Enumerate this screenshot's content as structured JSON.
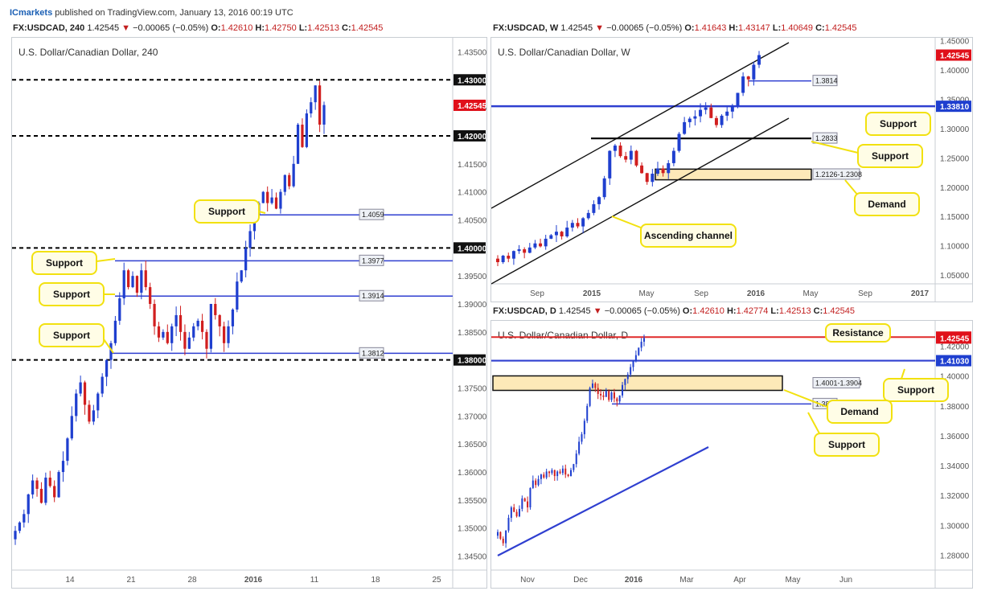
{
  "header": {
    "brand": "ICmarkets",
    "published": "published on TradingView.com, January 13, 2016 00:19 UTC"
  },
  "colors": {
    "bull": "#1f3fcf",
    "bear": "#d11f1f",
    "level": "#2f3fd0",
    "resistance": "#e02a2a",
    "zone_fill": "#fde9b8",
    "callout_border": "#f2e10f",
    "callout_fill": "#fffde6",
    "price_tag_red": "#e0101a",
    "price_tag_blue": "#1f3fcf"
  },
  "chart_data": [
    {
      "id": "h4",
      "type": "candlestick",
      "symbol_line": {
        "symbol": "FX:USDCAD, 240",
        "last": "1.42545",
        "change": "−0.00065 (−0.05%)",
        "O": "1.42610",
        "H": "1.42750",
        "L": "1.42513",
        "C": "1.42545"
      },
      "title": "U.S. Dollar/Canadian Dollar, 240",
      "x_ticks": [
        "14",
        "21",
        "28",
        "2016",
        "11",
        "18",
        "25"
      ],
      "y_ticks": [
        "1.43500",
        "1.43000",
        "1.42500",
        "1.42000",
        "1.41500",
        "1.41000",
        "1.40500",
        "1.40000",
        "1.39500",
        "1.39000",
        "1.38500",
        "1.38000",
        "1.37500",
        "1.37000",
        "1.36500",
        "1.36000",
        "1.35500",
        "1.35000",
        "1.34500"
      ],
      "ylim": [
        1.3425,
        1.4375
      ],
      "price_tags": [
        {
          "value": 1.43,
          "label": "1.43000"
        },
        {
          "value": 1.42545,
          "label": "1.42545"
        },
        {
          "value": 1.42,
          "label": "1.42000"
        },
        {
          "value": 1.4,
          "label": "1.40000"
        },
        {
          "value": 1.38,
          "label": "1.38000"
        }
      ],
      "round_levels": [
        1.43,
        1.42,
        1.4,
        1.38
      ],
      "levels": [
        {
          "value": 1.4059,
          "label": "1.4059"
        },
        {
          "value": 1.3977,
          "label": "1.3977"
        },
        {
          "value": 1.3914,
          "label": "1.3914"
        },
        {
          "value": 1.3812,
          "label": "1.3812"
        }
      ],
      "callouts": [
        "Support",
        "Support",
        "Support",
        "Support"
      ],
      "closes": [
        1.3495,
        1.351,
        1.3525,
        1.356,
        1.3585,
        1.357,
        1.3545,
        1.359,
        1.3575,
        1.3555,
        1.36,
        1.362,
        1.366,
        1.37,
        1.374,
        1.376,
        1.372,
        1.369,
        1.371,
        1.374,
        1.377,
        1.38,
        1.383,
        1.387,
        1.391,
        1.396,
        1.393,
        1.395,
        1.392,
        1.396,
        1.393,
        1.39,
        1.386,
        1.384,
        1.385,
        1.383,
        1.386,
        1.388,
        1.385,
        1.382,
        1.384,
        1.386,
        1.387,
        1.385,
        1.382,
        1.39,
        1.388,
        1.386,
        1.383,
        1.386,
        1.389,
        1.394,
        1.396,
        1.4,
        1.403,
        1.406,
        1.408,
        1.41,
        1.408,
        1.409,
        1.407,
        1.41,
        1.413,
        1.411,
        1.415,
        1.422,
        1.418,
        1.424,
        1.426,
        1.429,
        1.422,
        1.4255
      ]
    },
    {
      "id": "weekly",
      "type": "candlestick",
      "symbol_line": {
        "symbol": "FX:USDCAD, W",
        "last": "1.42545",
        "change": "−0.00065 (−0.05%)",
        "O": "1.41643",
        "H": "1.43147",
        "L": "1.40649",
        "C": "1.42545"
      },
      "title": "U.S. Dollar/Canadian Dollar, W",
      "x_ticks": [
        "Sep",
        "2015",
        "May",
        "Sep",
        "2016",
        "May",
        "Sep",
        "2017"
      ],
      "y_ticks": [
        "1.45000",
        "1.40000",
        "1.35000",
        "1.30000",
        "1.25000",
        "1.20000",
        "1.15000",
        "1.10000",
        "1.05000"
      ],
      "ylim": [
        1.035,
        1.455
      ],
      "price_tags": [
        {
          "value": 1.42545,
          "label": "1.42545"
        },
        {
          "value": 1.3381,
          "label": "1.33810"
        }
      ],
      "levels": [
        {
          "value": 1.3814,
          "label": "1.3814"
        },
        {
          "value": 1.3381,
          "label": ""
        },
        {
          "value": 1.2833,
          "label": "1.2833"
        }
      ],
      "zones": [
        {
          "from": 1.2126,
          "to": 1.2308,
          "label": "1.2126-1.2308"
        }
      ],
      "callouts": [
        "Support",
        "Support",
        "Demand",
        "Ascending channel"
      ],
      "closes": [
        1.072,
        1.083,
        1.078,
        1.091,
        1.094,
        1.088,
        1.097,
        1.104,
        1.099,
        1.112,
        1.118,
        1.124,
        1.116,
        1.131,
        1.139,
        1.133,
        1.147,
        1.156,
        1.171,
        1.183,
        1.215,
        1.262,
        1.271,
        1.253,
        1.247,
        1.262,
        1.237,
        1.224,
        1.209,
        1.223,
        1.232,
        1.224,
        1.241,
        1.262,
        1.291,
        1.311,
        1.317,
        1.321,
        1.332,
        1.336,
        1.318,
        1.306,
        1.322,
        1.329,
        1.339,
        1.361,
        1.389,
        1.384,
        1.409,
        1.42545
      ]
    },
    {
      "id": "daily",
      "type": "candlestick",
      "symbol_line": {
        "symbol": "FX:USDCAD, D",
        "last": "1.42545",
        "change": "−0.00065 (−0.05%)",
        "O": "1.42610",
        "H": "1.42774",
        "L": "1.42513",
        "C": "1.42545"
      },
      "title": "U.S. Dollar/Canadian Dollar, D",
      "x_ticks": [
        "Nov",
        "Dec",
        "2016",
        "Mar",
        "Apr",
        "May",
        "Jun"
      ],
      "y_ticks": [
        "1.42000",
        "1.40000",
        "1.38000",
        "1.36000",
        "1.34000",
        "1.32000",
        "1.30000",
        "1.28000"
      ],
      "ylim": [
        1.27,
        1.437
      ],
      "price_tags": [
        {
          "value": 1.4261,
          "label": "1.42610"
        },
        {
          "value": 1.42545,
          "label": "1.42545"
        },
        {
          "value": 1.4103,
          "label": "1.41030"
        }
      ],
      "levels": [
        {
          "value": 1.4261,
          "label": ""
        },
        {
          "value": 1.4103,
          "label": ""
        },
        {
          "value": 1.3813,
          "label": "1.3813"
        }
      ],
      "zones": [
        {
          "from": 1.3904,
          "to": 1.4001,
          "label": "1.4001-1.3904"
        }
      ],
      "callouts": [
        "Resistance",
        "Support",
        "Demand",
        "Support"
      ],
      "closes": [
        1.2955,
        1.291,
        1.288,
        1.2965,
        1.305,
        1.312,
        1.309,
        1.306,
        1.311,
        1.318,
        1.316,
        1.312,
        1.325,
        1.33,
        1.327,
        1.331,
        1.334,
        1.332,
        1.336,
        1.335,
        1.337,
        1.333,
        1.336,
        1.335,
        1.338,
        1.334,
        1.333,
        1.337,
        1.341,
        1.348,
        1.356,
        1.361,
        1.37,
        1.38,
        1.392,
        1.395,
        1.392,
        1.388,
        1.387,
        1.386,
        1.39,
        1.384,
        1.389,
        1.385,
        1.383,
        1.387,
        1.394,
        1.398,
        1.401,
        1.406,
        1.41,
        1.414,
        1.419,
        1.423,
        1.42545
      ]
    }
  ]
}
